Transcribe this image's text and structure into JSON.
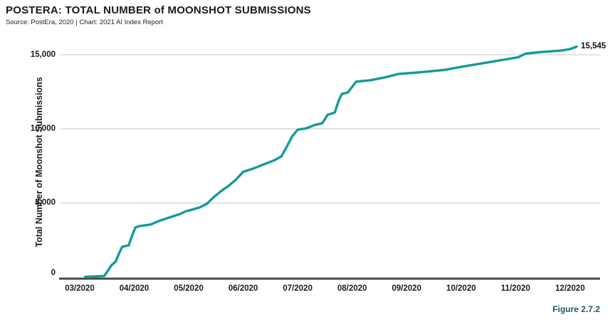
{
  "header": {
    "title": "POSTERA: TOTAL NUMBER of MOONSHOT SUBMISSIONS",
    "source_line": "Source: PostEra, 2020 | Chart: 2021 AI Index Report"
  },
  "footer": {
    "figure_label": "Figure 2.7.2"
  },
  "colors": {
    "line": "#159a98",
    "axis": "#4a4a4a",
    "gridline": "#d2d2d2",
    "figure_label": "#26566d",
    "text": "#1a1a1a"
  },
  "chart_data": {
    "type": "line",
    "title": "POSTERA: TOTAL NUMBER of MOONSHOT SUBMISSIONS",
    "xlabel": "",
    "ylabel": "Total Number of Moonshot Submissions",
    "x_unit": "months (0 = 03/2020 tick, 9 = 12/2020 tick)",
    "x_tick_labels": [
      "03/2020",
      "04/2020",
      "05/2020",
      "06/2020",
      "07/2020",
      "08/2020",
      "09/2020",
      "10/2020",
      "11/2020",
      "12/2020"
    ],
    "y_ticks": [
      {
        "value": 0,
        "label": "0"
      },
      {
        "value": 5000,
        "label": "5,000"
      },
      {
        "value": 10000,
        "label": "10,000"
      },
      {
        "value": 15000,
        "label": "15,000"
      }
    ],
    "ylim": [
      0,
      15700
    ],
    "grid": "horizontal-only",
    "legend": "none",
    "end_annotation": {
      "label": "15,545",
      "value": 15545
    },
    "series": [
      {
        "name": "Total Moonshot Submissions",
        "points": [
          [
            0.1,
            30
          ],
          [
            0.45,
            80
          ],
          [
            0.52,
            450
          ],
          [
            0.58,
            800
          ],
          [
            0.66,
            1050
          ],
          [
            0.72,
            1600
          ],
          [
            0.78,
            2050
          ],
          [
            0.9,
            2150
          ],
          [
            0.96,
            2800
          ],
          [
            1.02,
            3350
          ],
          [
            1.1,
            3450
          ],
          [
            1.3,
            3550
          ],
          [
            1.48,
            3830
          ],
          [
            1.68,
            4070
          ],
          [
            1.84,
            4260
          ],
          [
            1.95,
            4450
          ],
          [
            2.07,
            4560
          ],
          [
            2.2,
            4700
          ],
          [
            2.33,
            4940
          ],
          [
            2.46,
            5400
          ],
          [
            2.6,
            5820
          ],
          [
            2.73,
            6160
          ],
          [
            2.86,
            6550
          ],
          [
            3.0,
            7100
          ],
          [
            3.18,
            7320
          ],
          [
            3.38,
            7610
          ],
          [
            3.58,
            7900
          ],
          [
            3.7,
            8140
          ],
          [
            3.8,
            8800
          ],
          [
            3.9,
            9500
          ],
          [
            4.0,
            9950
          ],
          [
            4.15,
            10030
          ],
          [
            4.32,
            10270
          ],
          [
            4.45,
            10370
          ],
          [
            4.55,
            10950
          ],
          [
            4.68,
            11100
          ],
          [
            4.75,
            11870
          ],
          [
            4.81,
            12360
          ],
          [
            4.92,
            12450
          ],
          [
            5.0,
            12840
          ],
          [
            5.07,
            13180
          ],
          [
            5.33,
            13280
          ],
          [
            5.6,
            13470
          ],
          [
            5.86,
            13710
          ],
          [
            6.12,
            13780
          ],
          [
            6.4,
            13870
          ],
          [
            6.7,
            13980
          ],
          [
            7.03,
            14200
          ],
          [
            7.42,
            14440
          ],
          [
            7.82,
            14690
          ],
          [
            8.05,
            14830
          ],
          [
            8.18,
            15070
          ],
          [
            8.42,
            15170
          ],
          [
            8.83,
            15280
          ],
          [
            9.0,
            15380
          ],
          [
            9.12,
            15545
          ]
        ]
      }
    ]
  }
}
